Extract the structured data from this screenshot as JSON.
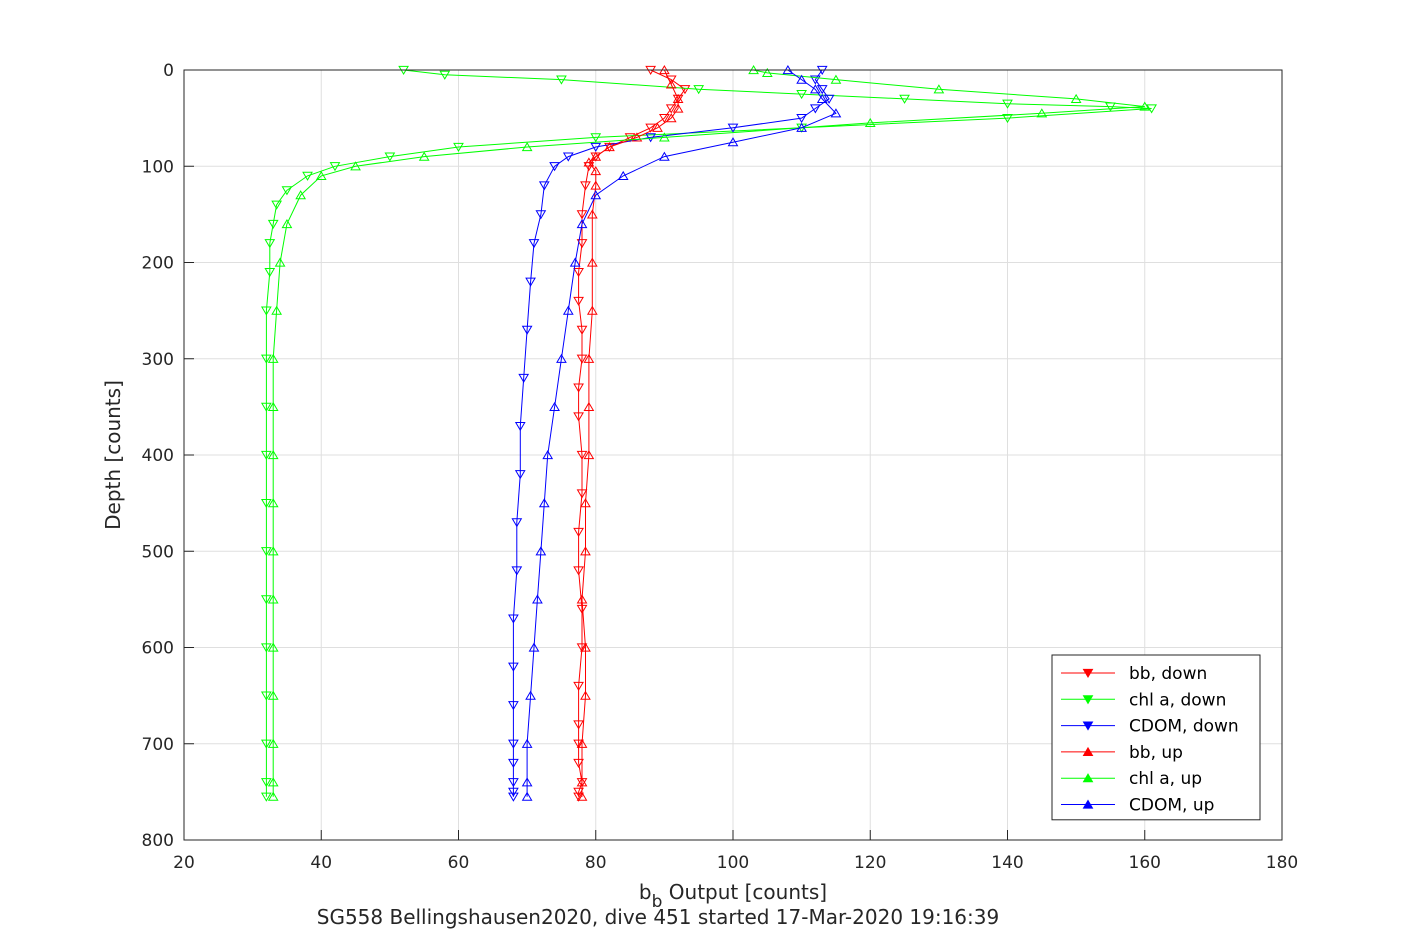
{
  "chart_data": {
    "type": "line",
    "xlabel_main": "b",
    "xlabel_sub": "b",
    "xlabel_rest": " Output [counts]",
    "ylabel": "Depth [counts]",
    "caption": "SG558 Bellingshausen2020, dive 451 started 17-Mar-2020 19:16:39",
    "xlim": [
      20,
      180
    ],
    "ylim": [
      0,
      800
    ],
    "y_reversed": true,
    "grid": true,
    "xticks": [
      20,
      40,
      60,
      80,
      100,
      120,
      140,
      160,
      180
    ],
    "yticks": [
      0,
      100,
      200,
      300,
      400,
      500,
      600,
      700,
      800
    ],
    "legend_position": "bottom-right",
    "series": [
      {
        "name": "bb, down",
        "color": "#ff0000",
        "marker": "triangle-down",
        "x": [
          88,
          91,
          93,
          92,
          91,
          90,
          88,
          85,
          82,
          80,
          79,
          78.5,
          78,
          78,
          77.5,
          77.5,
          78,
          78,
          77.5,
          77.5,
          78,
          78,
          77.5,
          77.5,
          78,
          78,
          77.5,
          77.5,
          77.5,
          77.5,
          78,
          77.5,
          77.5
        ],
        "y": [
          0,
          10,
          20,
          30,
          40,
          50,
          60,
          70,
          80,
          90,
          100,
          120,
          150,
          180,
          210,
          240,
          270,
          300,
          330,
          360,
          400,
          440,
          480,
          520,
          560,
          600,
          640,
          680,
          700,
          720,
          740,
          750,
          755
        ]
      },
      {
        "name": "chl a, down",
        "color": "#00ff00",
        "marker": "triangle-down",
        "x": [
          52,
          58,
          75,
          95,
          110,
          125,
          140,
          155,
          161,
          140,
          110,
          80,
          60,
          50,
          42,
          38,
          35,
          33.5,
          33,
          32.5,
          32.5,
          32,
          32,
          32,
          32,
          32,
          32,
          32,
          32,
          32,
          32,
          32,
          32
        ],
        "y": [
          0,
          5,
          10,
          20,
          25,
          30,
          35,
          38,
          40,
          50,
          60,
          70,
          80,
          90,
          100,
          110,
          125,
          140,
          160,
          180,
          210,
          250,
          300,
          350,
          400,
          450,
          500,
          550,
          600,
          650,
          700,
          740,
          755
        ]
      },
      {
        "name": "CDOM, down",
        "color": "#0000ff",
        "marker": "triangle-down",
        "x": [
          113,
          112,
          113,
          114,
          112,
          110,
          100,
          88,
          80,
          76,
          74,
          72.5,
          72,
          71,
          70.5,
          70,
          69.5,
          69,
          69,
          68.5,
          68.5,
          68,
          68,
          68,
          68,
          68,
          68,
          68,
          68
        ],
        "y": [
          0,
          10,
          20,
          30,
          40,
          50,
          60,
          70,
          80,
          90,
          100,
          120,
          150,
          180,
          220,
          270,
          320,
          370,
          420,
          470,
          520,
          570,
          620,
          660,
          700,
          720,
          740,
          750,
          755
        ]
      },
      {
        "name": "bb, up",
        "color": "#ff0000",
        "marker": "triangle-up",
        "x": [
          78,
          78,
          78,
          78.5,
          78.5,
          78,
          78.5,
          78.5,
          79,
          79,
          79,
          79.5,
          79.5,
          79.5,
          80,
          80,
          79,
          80,
          82,
          86,
          89,
          91,
          92,
          92,
          91,
          90
        ],
        "y": [
          755,
          740,
          700,
          650,
          600,
          550,
          500,
          450,
          400,
          350,
          300,
          250,
          200,
          150,
          120,
          105,
          96,
          90,
          80,
          70,
          60,
          50,
          40,
          30,
          15,
          0
        ]
      },
      {
        "name": "chl a, up",
        "color": "#00ff00",
        "marker": "triangle-up",
        "x": [
          33,
          33,
          33,
          33,
          33,
          33,
          33,
          33,
          33,
          33,
          33,
          33.5,
          34,
          35,
          37,
          40,
          45,
          55,
          70,
          90,
          120,
          145,
          160,
          150,
          130,
          115,
          105,
          103
        ],
        "y": [
          755,
          740,
          700,
          650,
          600,
          550,
          500,
          450,
          400,
          350,
          300,
          250,
          200,
          160,
          130,
          110,
          100,
          90,
          80,
          70,
          55,
          45,
          38,
          30,
          20,
          10,
          3,
          0
        ]
      },
      {
        "name": "CDOM, up",
        "color": "#0000ff",
        "marker": "triangle-up",
        "x": [
          70,
          70,
          70,
          70.5,
          71,
          71.5,
          72,
          72.5,
          73,
          74,
          75,
          76,
          77,
          78,
          80,
          84,
          90,
          100,
          110,
          115,
          113,
          112,
          110,
          108
        ],
        "y": [
          755,
          740,
          700,
          650,
          600,
          550,
          500,
          450,
          400,
          350,
          300,
          250,
          200,
          160,
          130,
          110,
          90,
          75,
          60,
          45,
          30,
          20,
          10,
          0
        ]
      }
    ]
  }
}
